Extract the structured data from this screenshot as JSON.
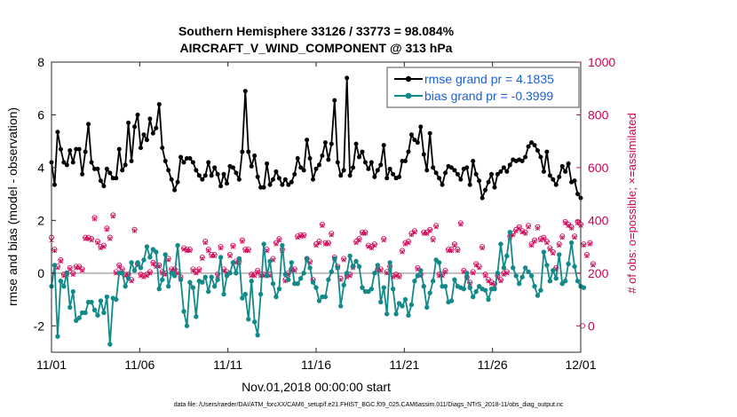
{
  "chart_data": {
    "type": "line",
    "title": "Southern Hemisphere 33126 / 33773 = 98.084%",
    "subtitle": "AIRCRAFT_V_WIND_COMPONENT @ 313 hPa",
    "xlabel": "Nov.01,2018 00:00:00 start",
    "ylabel": "rmse and bias (model - observation)",
    "y2label": "# of obs: o=possible; ×=assimilated",
    "footnote": "data file: /Users/raeder/DAI/ATM_forcXX/CAM6_setup/f.e21.FHIST_BGC.f09_025.CAM6assim.011/Diags_NTrS_2018-11/obs_diag_output.nc",
    "xlim": [
      0,
      30
    ],
    "ylim": [
      -3,
      8
    ],
    "y2lim": [
      -100,
      1000
    ],
    "xticks": [
      0,
      5,
      10,
      15,
      20,
      25,
      30
    ],
    "xticklabels": [
      "11/01",
      "11/06",
      "11/11",
      "11/16",
      "11/21",
      "11/26",
      "12/01"
    ],
    "yticks": [
      -2,
      0,
      2,
      4,
      6,
      8
    ],
    "yticklabels": [
      "-2",
      "0",
      "2",
      "4",
      "6",
      "8"
    ],
    "y2ticks": [
      0,
      200,
      400,
      600,
      800,
      1000
    ],
    "y2ticklabels": [
      "0",
      "200",
      "400",
      "600",
      "800",
      "1000"
    ],
    "legend": [
      "rmse grand pr = 4.1835",
      "bias grand pr = -0.3999"
    ],
    "colors": {
      "rmse": "#000000",
      "bias": "#138a8a",
      "obs": "#d00056",
      "zero": "#bdbdbd",
      "legend_text": "#1a5fd6"
    },
    "series": [
      {
        "name": "rmse",
        "values": [
          4.2,
          3.35,
          5.35,
          4.7,
          4.2,
          4.1,
          4.65,
          4.2,
          4.7,
          4.7,
          3.75,
          4.6,
          5.65,
          4.2,
          3.95,
          3.95,
          3.5,
          3.3,
          3.95,
          3.8,
          3.6,
          3.6,
          4.7,
          3.9,
          4.1,
          5.7,
          4.25,
          5.55,
          6.0,
          4.75,
          5.25,
          5.05,
          5.85,
          5.3,
          5.5,
          6.4,
          4.75,
          4.25,
          3.9,
          3.55,
          3.15,
          3.45,
          4.4,
          4.2,
          4.35,
          4.35,
          4.2,
          3.9,
          3.7,
          3.55,
          3.7,
          4.2,
          3.7,
          4.0,
          3.75,
          3.3,
          3.75,
          3.4,
          4.05,
          4.0,
          3.8,
          3.55,
          4.6,
          6.9,
          4.6,
          4.05,
          4.45,
          3.65,
          3.25,
          3.25,
          4.15,
          3.35,
          3.55,
          3.85,
          3.6,
          3.35,
          3.55,
          3.35,
          3.45,
          3.75,
          4.35,
          4.0,
          3.9,
          5.05,
          4.35,
          3.55,
          3.95,
          4.1,
          4.45,
          4.95,
          4.3,
          4.9,
          6.55,
          4.2,
          3.7,
          3.9,
          7.4,
          3.7,
          4.0,
          4.9,
          4.4,
          4.6,
          4.2,
          3.95,
          4.2,
          3.65,
          3.9,
          4.1,
          4.85,
          3.6,
          3.95,
          3.75,
          3.6,
          3.65,
          4.25,
          4.25,
          4.6,
          5.25,
          5.05,
          4.95,
          5.55,
          4.5,
          3.9,
          5.3,
          4.0,
          3.8,
          3.6,
          3.35,
          3.8,
          4.05,
          4.0,
          3.9,
          3.75,
          3.55,
          3.95,
          4.0,
          3.35,
          4.25,
          3.75,
          3.5,
          2.85,
          3.15,
          3.45,
          3.75,
          3.25,
          3.75,
          3.85,
          4.0,
          3.85,
          4.1,
          4.3,
          4.25,
          4.3,
          4.25,
          4.4,
          4.8,
          4.95,
          4.85,
          4.65,
          4.4,
          3.85,
          4.6,
          3.7,
          3.55,
          3.35,
          3.65,
          4.05,
          3.85,
          4.15,
          3.45,
          3.5,
          3.0,
          2.85
        ]
      },
      {
        "name": "bias",
        "values": [
          -0.5,
          0.3,
          -2.4,
          -0.3,
          -0.5,
          0.0,
          -1.3,
          -0.7,
          -1.8,
          -1.7,
          -1.5,
          -1.5,
          -1.1,
          -1.1,
          -1.4,
          -1.6,
          -1.05,
          -1.5,
          -0.9,
          -2.7,
          -0.95,
          -1.0,
          0.0,
          0.0,
          -0.5,
          -0.2,
          0.4,
          0.1,
          0.4,
          0.2,
          0.5,
          1.0,
          0.6,
          0.9,
          0.8,
          -0.6,
          -0.25,
          0.7,
          -0.5,
          0.0,
          -0.1,
          1.05,
          -0.25,
          -1.45,
          -2.0,
          -0.35,
          -0.55,
          -1.65,
          -0.3,
          -0.35,
          -0.15,
          -0.7,
          -0.15,
          -0.5,
          -0.25,
          0.6,
          -0.8,
          -0.1,
          0.0,
          0.4,
          0.0,
          0.55,
          -0.95,
          -0.8,
          -1.75,
          -0.3,
          -1.85,
          -2.35,
          -0.8,
          1.1,
          -0.1,
          0.45,
          -0.4,
          -0.9,
          -0.6,
          1.05,
          -0.05,
          -0.25,
          0.4,
          -0.4,
          -0.4,
          -0.2,
          0.0,
          0.55,
          0.2,
          -0.35,
          -0.55,
          -1.05,
          -0.9,
          -0.9,
          -0.25,
          0.05,
          0.55,
          0.2,
          -1.25,
          -0.45,
          0.0,
          0.65,
          0.25,
          0.45,
          0.25,
          -0.55,
          -0.7,
          -0.7,
          -0.6,
          0.0,
          0.3,
          -1.1,
          -0.55,
          -1.55,
          0.4,
          -0.6,
          -1.55,
          -1.15,
          -1.25,
          -1.0,
          -1.6,
          -1.2,
          -0.3,
          -0.1,
          0.1,
          -0.5,
          -1.3,
          -0.75,
          -0.3,
          0.5,
          0.4,
          -0.5,
          -0.5,
          -1.1,
          -1.05,
          -0.25,
          -0.5,
          -0.55,
          -0.6,
          0.0,
          -0.55,
          -0.9,
          -0.7,
          -0.5,
          -0.6,
          -0.65,
          -1.0,
          -0.6,
          -0.6,
          0.0,
          1.1,
          0.2,
          0.65,
          1.55,
          0.2,
          -0.1,
          -0.4,
          -0.15,
          0.2,
          0.05,
          -0.1,
          -0.5,
          -0.85,
          -0.65,
          0.8,
          0.3,
          -0.3,
          0.1,
          -0.2,
          0.7,
          -0.4,
          -0.3,
          0.35,
          1.15,
          0.25,
          -0.3,
          -0.5,
          -0.55
        ]
      },
      {
        "name": "obs_possible",
        "values": [
          335,
          290,
          225,
          250,
          195,
          200,
          220,
          200,
          225,
          225,
          215,
          335,
          335,
          330,
          410,
          320,
          300,
          305,
          370,
          335,
          420,
          205,
          230,
          215,
          195,
          195,
          175,
          365,
          235,
          195,
          190,
          195,
          205,
          240,
          230,
          230,
          205,
          200,
          255,
          215,
          215,
          205,
          185,
          295,
          290,
          290,
          215,
          205,
          215,
          260,
          320,
          290,
          270,
          270,
          195,
          300,
          215,
          205,
          270,
          305,
          245,
          245,
          325,
          290,
          290,
          195,
          195,
          210,
          195,
          195,
          290,
          195,
          255,
          315,
          330,
          290,
          175,
          200,
          215,
          215,
          340,
          345,
          345,
          255,
          245,
          175,
          310,
          320,
          385,
          315,
          315,
          350,
          260,
          225,
          180,
          255,
          190,
          195,
          225,
          320,
          330,
          355,
          355,
          305,
          300,
          310,
          215,
          215,
          330,
          205,
          225,
          190,
          195,
          190,
          285,
          315,
          320,
          350,
          360,
          220,
          195,
          355,
          355,
          365,
          330,
          380,
          195,
          195,
          210,
          290,
          290,
          310,
          290,
          390,
          210,
          185,
          165,
          205,
          235,
          225,
          300,
          195,
          175,
          165,
          160,
          190,
          175,
          200,
          205,
          340,
          350,
          365,
          375,
          360,
          355,
          380,
          310,
          325,
          375,
          330,
          335,
          320,
          295,
          280,
          220,
          310,
          340,
          395,
          385,
          375,
          340,
          395,
          385,
          310,
          270,
          315,
          235
        ]
      },
      {
        "name": "obs_assimilated",
        "values": [
          325,
          285,
          220,
          245,
          190,
          195,
          215,
          195,
          220,
          220,
          210,
          330,
          330,
          325,
          405,
          315,
          295,
          300,
          365,
          330,
          415,
          200,
          225,
          210,
          190,
          190,
          170,
          360,
          230,
          190,
          185,
          190,
          200,
          235,
          225,
          225,
          200,
          195,
          250,
          210,
          210,
          200,
          180,
          290,
          285,
          285,
          210,
          200,
          210,
          255,
          315,
          285,
          265,
          265,
          190,
          295,
          210,
          200,
          265,
          300,
          240,
          240,
          320,
          285,
          285,
          190,
          190,
          205,
          190,
          190,
          285,
          190,
          250,
          310,
          325,
          285,
          170,
          195,
          210,
          210,
          335,
          340,
          340,
          250,
          240,
          170,
          305,
          315,
          380,
          310,
          310,
          345,
          255,
          220,
          175,
          250,
          185,
          190,
          220,
          315,
          325,
          350,
          350,
          300,
          295,
          305,
          210,
          210,
          325,
          200,
          220,
          185,
          190,
          185,
          280,
          310,
          315,
          345,
          355,
          215,
          190,
          350,
          350,
          360,
          325,
          375,
          190,
          190,
          205,
          285,
          285,
          305,
          285,
          385,
          205,
          180,
          160,
          200,
          230,
          220,
          295,
          190,
          170,
          160,
          155,
          185,
          170,
          195,
          200,
          335,
          345,
          360,
          370,
          355,
          350,
          375,
          305,
          320,
          370,
          325,
          330,
          315,
          290,
          275,
          215,
          305,
          335,
          390,
          380,
          370,
          335,
          390,
          380,
          305,
          265,
          310,
          230
        ]
      }
    ]
  }
}
